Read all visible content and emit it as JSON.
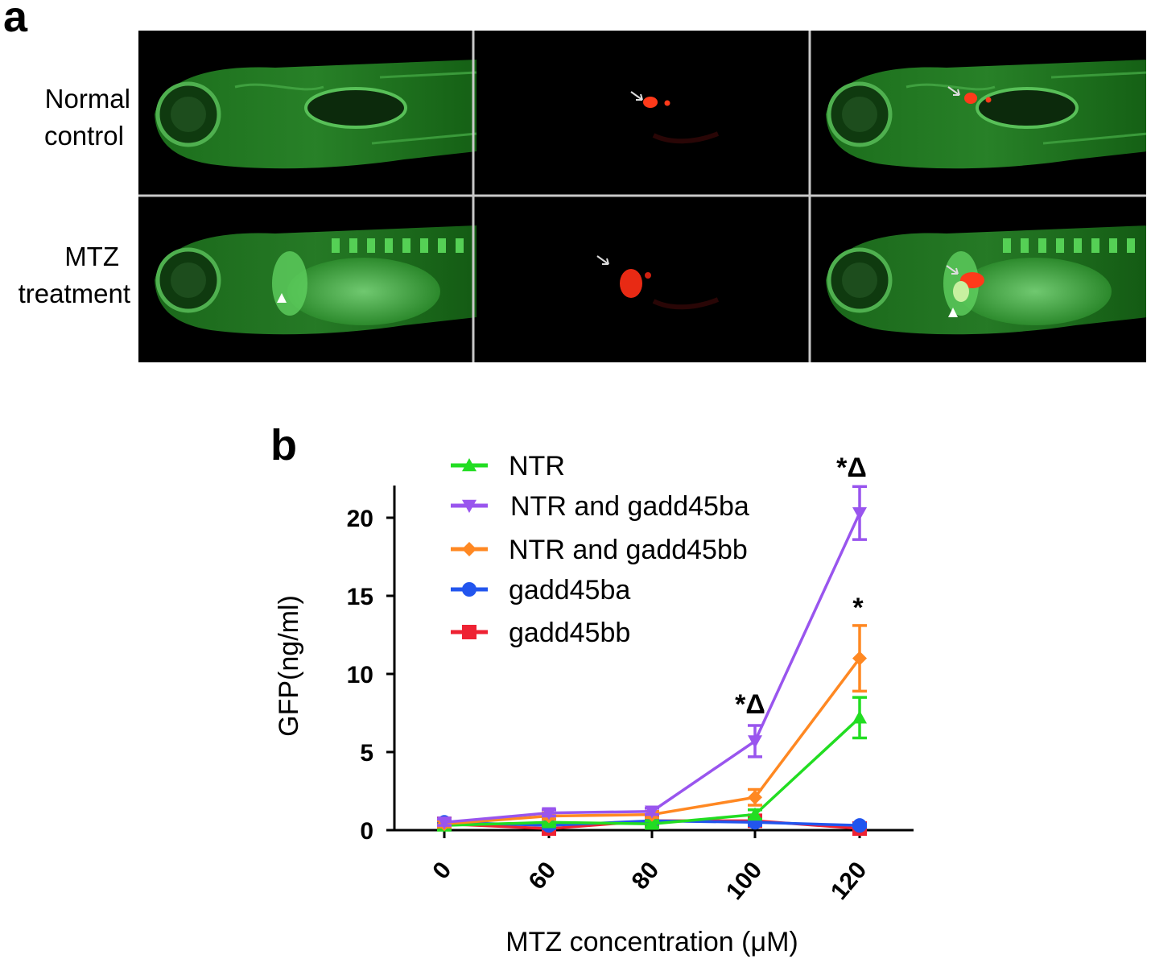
{
  "figure": {
    "panel_a_letter": "a",
    "panel_b_letter": "b",
    "rows": [
      {
        "label_line1": "Normal",
        "label_line2": "control"
      },
      {
        "label_line1": "MTZ",
        "label_line2": "treatment"
      }
    ],
    "channels": [
      "green",
      "red",
      "merge"
    ]
  },
  "chart_data": {
    "type": "line",
    "title": "",
    "xlabel": "MTZ concentration (μM)",
    "ylabel": "GFP(ng/ml)",
    "categories": [
      "0",
      "60",
      "80",
      "100",
      "120"
    ],
    "ylim": [
      0,
      22
    ],
    "yticks": [
      0,
      5,
      10,
      15,
      20
    ],
    "grid": false,
    "legend_position": "top-left",
    "series": [
      {
        "name": "NTR",
        "color": "#22dd22",
        "marker": "triangle-up",
        "values": [
          0.3,
          0.5,
          0.4,
          1.0,
          7.2
        ],
        "errors": [
          0.3,
          0.2,
          0.2,
          0.3,
          1.3
        ]
      },
      {
        "name": "NTR and gadd45ba",
        "color": "#9955ee",
        "marker": "triangle-down",
        "values": [
          0.5,
          1.1,
          1.2,
          5.7,
          20.3
        ],
        "errors": [
          0.2,
          0.2,
          0.2,
          1.0,
          1.7
        ]
      },
      {
        "name": "NTR and gadd45bb",
        "color": "#ff8822",
        "marker": "diamond",
        "values": [
          0.4,
          0.9,
          1.0,
          2.1,
          11.0
        ],
        "errors": [
          0.2,
          0.2,
          0.2,
          0.5,
          2.1
        ]
      },
      {
        "name": "gadd45ba",
        "color": "#2255ee",
        "marker": "circle",
        "values": [
          0.5,
          0.3,
          0.6,
          0.5,
          0.3
        ],
        "errors": [
          0.2,
          0.2,
          0.2,
          0.2,
          0.1
        ]
      },
      {
        "name": "gadd45bb",
        "color": "#ee2233",
        "marker": "square",
        "values": [
          0.4,
          0.1,
          0.6,
          0.6,
          0.1
        ],
        "errors": [
          0.2,
          0.1,
          0.2,
          0.2,
          0.1
        ]
      }
    ],
    "annotations": [
      {
        "category": "100",
        "text": "*Δ"
      },
      {
        "category": "120",
        "text": "*Δ"
      },
      {
        "category": "120",
        "text": "*"
      }
    ]
  }
}
